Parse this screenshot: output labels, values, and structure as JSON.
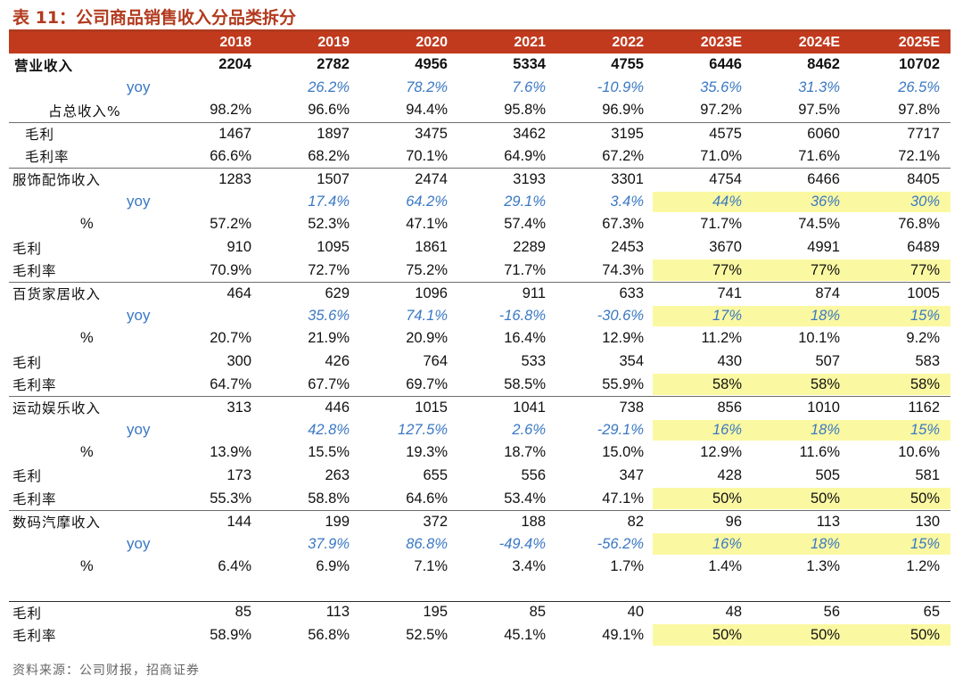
{
  "title": "表 11：公司商品销售收入分品类拆分",
  "columns": [
    "2018",
    "2019",
    "2020",
    "2021",
    "2022",
    "2023E",
    "2024E",
    "2025E"
  ],
  "rows": [
    {
      "label": "营业收入",
      "style": "bold",
      "sep": "",
      "hl": false,
      "values": [
        "2204",
        "2782",
        "4956",
        "5334",
        "4755",
        "6446",
        "8462",
        "10702"
      ]
    },
    {
      "label": "yoy",
      "style": "yoy",
      "sep": "",
      "hl": false,
      "values": [
        "",
        "26.2%",
        "78.2%",
        "7.6%",
        "-10.9%",
        "35.6%",
        "31.3%",
        "26.5%"
      ]
    },
    {
      "label": "占总收入%",
      "style": "indent",
      "sep": "",
      "hl": false,
      "values": [
        "98.2%",
        "96.6%",
        "94.4%",
        "95.8%",
        "96.9%",
        "97.2%",
        "97.5%",
        "97.8%"
      ]
    },
    {
      "label": "毛利",
      "style": "sub",
      "sep": "thin",
      "hl": false,
      "values": [
        "1467",
        "1897",
        "3475",
        "3462",
        "3195",
        "4575",
        "6060",
        "7717"
      ]
    },
    {
      "label": "毛利率",
      "style": "sub",
      "sep": "",
      "hl": false,
      "values": [
        "66.6%",
        "68.2%",
        "70.1%",
        "64.9%",
        "67.2%",
        "71.0%",
        "71.6%",
        "72.1%"
      ]
    },
    {
      "label": "服饰配饰收入",
      "style": "normal",
      "sep": "thin",
      "hl": false,
      "values": [
        "1283",
        "1507",
        "2474",
        "3193",
        "3301",
        "4754",
        "6466",
        "8405"
      ]
    },
    {
      "label": "yoy",
      "style": "yoy",
      "sep": "",
      "hl": true,
      "values": [
        "",
        "17.4%",
        "64.2%",
        "29.1%",
        "3.4%",
        "44%",
        "36%",
        "30%"
      ]
    },
    {
      "label": "%",
      "style": "pct",
      "sep": "",
      "hl": false,
      "values": [
        "57.2%",
        "52.3%",
        "47.1%",
        "57.4%",
        "67.3%",
        "71.7%",
        "74.5%",
        "76.8%"
      ]
    },
    {
      "label": "毛利",
      "style": "normal",
      "sep": "",
      "hl": false,
      "values": [
        "910",
        "1095",
        "1861",
        "2289",
        "2453",
        "3670",
        "4991",
        "6489"
      ]
    },
    {
      "label": "毛利率",
      "style": "normal",
      "sep": "",
      "hl": true,
      "values": [
        "70.9%",
        "72.7%",
        "75.2%",
        "71.7%",
        "74.3%",
        "77%",
        "77%",
        "77%"
      ]
    },
    {
      "label": "百货家居收入",
      "style": "normal",
      "sep": "thin",
      "hl": false,
      "values": [
        "464",
        "629",
        "1096",
        "911",
        "633",
        "741",
        "874",
        "1005"
      ]
    },
    {
      "label": "yoy",
      "style": "yoy",
      "sep": "",
      "hl": true,
      "values": [
        "",
        "35.6%",
        "74.1%",
        "-16.8%",
        "-30.6%",
        "17%",
        "18%",
        "15%"
      ]
    },
    {
      "label": "%",
      "style": "pct",
      "sep": "",
      "hl": false,
      "values": [
        "20.7%",
        "21.9%",
        "20.9%",
        "16.4%",
        "12.9%",
        "11.2%",
        "10.1%",
        "9.2%"
      ]
    },
    {
      "label": "毛利",
      "style": "normal",
      "sep": "",
      "hl": false,
      "values": [
        "300",
        "426",
        "764",
        "533",
        "354",
        "430",
        "507",
        "583"
      ]
    },
    {
      "label": "毛利率",
      "style": "normal",
      "sep": "",
      "hl": true,
      "values": [
        "64.7%",
        "67.7%",
        "69.7%",
        "58.5%",
        "55.9%",
        "58%",
        "58%",
        "58%"
      ]
    },
    {
      "label": "运动娱乐收入",
      "style": "normal",
      "sep": "thin",
      "hl": false,
      "values": [
        "313",
        "446",
        "1015",
        "1041",
        "738",
        "856",
        "1010",
        "1162"
      ]
    },
    {
      "label": "yoy",
      "style": "yoy",
      "sep": "",
      "hl": true,
      "values": [
        "",
        "42.8%",
        "127.5%",
        "2.6%",
        "-29.1%",
        "16%",
        "18%",
        "15%"
      ]
    },
    {
      "label": "%",
      "style": "pct",
      "sep": "",
      "hl": false,
      "values": [
        "13.9%",
        "15.5%",
        "19.3%",
        "18.7%",
        "15.0%",
        "12.9%",
        "11.6%",
        "10.6%"
      ]
    },
    {
      "label": "毛利",
      "style": "normal",
      "sep": "",
      "hl": false,
      "values": [
        "173",
        "263",
        "655",
        "556",
        "347",
        "428",
        "505",
        "581"
      ]
    },
    {
      "label": "毛利率",
      "style": "normal",
      "sep": "",
      "hl": true,
      "values": [
        "55.3%",
        "58.8%",
        "64.6%",
        "53.4%",
        "47.1%",
        "50%",
        "50%",
        "50%"
      ]
    },
    {
      "label": "数码汽摩收入",
      "style": "normal",
      "sep": "thin",
      "hl": false,
      "values": [
        "144",
        "199",
        "372",
        "188",
        "82",
        "96",
        "113",
        "130"
      ]
    },
    {
      "label": "yoy",
      "style": "yoy",
      "sep": "",
      "hl": true,
      "values": [
        "",
        "37.9%",
        "86.8%",
        "-49.4%",
        "-56.2%",
        "16%",
        "18%",
        "15%"
      ]
    },
    {
      "label": "%",
      "style": "pct",
      "sep": "",
      "hl": false,
      "values": [
        "6.4%",
        "6.9%",
        "7.1%",
        "3.4%",
        "1.7%",
        "1.4%",
        "1.3%",
        "1.2%"
      ]
    },
    {
      "label": "",
      "style": "gap",
      "sep": "",
      "hl": false,
      "values": [
        "",
        "",
        "",
        "",
        "",
        "",
        "",
        ""
      ]
    },
    {
      "label": "毛利",
      "style": "normal",
      "sep": "bold",
      "hl": false,
      "values": [
        "85",
        "113",
        "195",
        "85",
        "40",
        "48",
        "56",
        "65"
      ]
    },
    {
      "label": "毛利率",
      "style": "normal",
      "sep": "",
      "hl": true,
      "values": [
        "58.9%",
        "56.8%",
        "52.5%",
        "45.1%",
        "49.1%",
        "50%",
        "50%",
        "50%"
      ]
    }
  ],
  "source": "资料来源：公司财报，招商证券",
  "colors": {
    "header_bg": "#c23a1e",
    "title": "#b23a1e",
    "yoy_text": "#3a78c3",
    "highlight": "#fbf8a2"
  }
}
